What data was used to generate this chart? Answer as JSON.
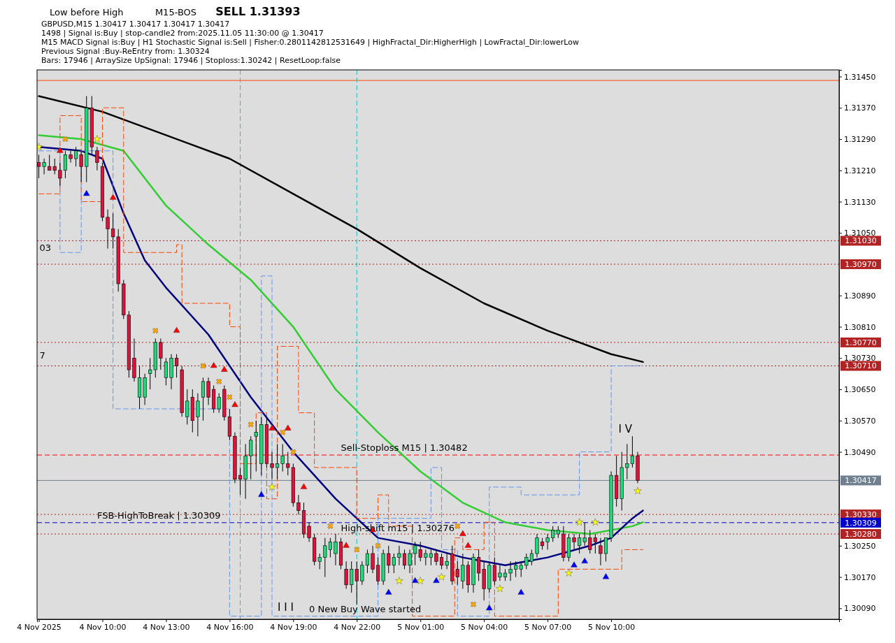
{
  "chart_data": {
    "type": "candlestick",
    "title": "GBPUSD,M15  1.30417 1.30417 1.30417 1.30417",
    "annotations": [
      "Low before High",
      "M15-BOS",
      "SELL 1.31393",
      "1498 | Signal is:Buy | stop-candle2 from:2025.11.05 11:30:00 @ 1.30417",
      "M15 MACD Signal is:Buy | H1 Stochastic Signal is:Sell | Fisher:0.2801142812531649 | HighFractal_Dir:HigherHigh | LowFractal_Dir:lowerLow",
      "Previous Signal :Buy-ReEntry from: 1.30324",
      "Bars: 17946 | ArraySize UpSignal: 17946 | Stoploss:1.30242 | ResetLoop:false",
      {
        "text": "Sell-Stoploss M15 | 1.30482",
        "x": "2025-11-04T21:15",
        "y": 1.30482
      },
      {
        "text": "FSB-HighToBreak | 1.30309",
        "x": "2025-11-04T09:45",
        "y": 1.30309
      },
      {
        "text": "High-shift m15 | 1.30276",
        "x": "2025-11-04T21:15",
        "y": 1.30276
      },
      {
        "text": "0 New Buy Wave started",
        "x": "2025-11-04T19:45",
        "y": 1.3007
      },
      "I I I",
      "I V",
      "03",
      "7"
    ],
    "x": [
      "2025-11-04T07:00",
      "2025-11-04T07:15",
      "2025-11-04T07:30",
      "2025-11-04T07:45",
      "2025-11-04T08:00",
      "2025-11-04T08:15",
      "2025-11-04T08:30",
      "2025-11-04T08:45",
      "2025-11-04T09:00",
      "2025-11-04T09:15",
      "2025-11-04T09:30",
      "2025-11-04T09:45",
      "2025-11-04T10:00",
      "2025-11-04T10:15",
      "2025-11-04T10:30",
      "2025-11-04T10:45",
      "2025-11-04T11:00",
      "2025-11-04T11:15",
      "2025-11-04T11:30",
      "2025-11-04T11:45",
      "2025-11-04T12:00",
      "2025-11-04T12:15",
      "2025-11-04T12:30",
      "2025-11-04T12:45",
      "2025-11-04T13:00",
      "2025-11-04T13:15",
      "2025-11-04T13:30",
      "2025-11-04T13:45",
      "2025-11-04T14:00",
      "2025-11-04T14:15",
      "2025-11-04T14:30",
      "2025-11-04T14:45",
      "2025-11-04T15:00",
      "2025-11-04T15:15",
      "2025-11-04T15:30",
      "2025-11-04T15:45",
      "2025-11-04T16:00",
      "2025-11-04T16:15",
      "2025-11-04T16:30",
      "2025-11-04T16:45",
      "2025-11-04T17:00",
      "2025-11-04T17:15",
      "2025-11-04T17:30",
      "2025-11-04T17:45",
      "2025-11-04T18:00",
      "2025-11-04T18:15",
      "2025-11-04T18:30",
      "2025-11-04T18:45",
      "2025-11-04T19:00",
      "2025-11-04T19:15",
      "2025-11-04T19:30",
      "2025-11-04T19:45",
      "2025-11-04T20:00",
      "2025-11-04T20:15",
      "2025-11-04T20:30",
      "2025-11-04T20:45",
      "2025-11-04T21:00",
      "2025-11-04T21:15",
      "2025-11-04T21:30",
      "2025-11-04T21:45",
      "2025-11-04T22:00",
      "2025-11-04T22:15",
      "2025-11-04T22:30",
      "2025-11-04T22:45",
      "2025-11-04T23:00",
      "2025-11-04T23:15",
      "2025-11-04T23:30",
      "2025-11-04T23:45",
      "2025-11-05T00:00",
      "2025-11-05T00:15",
      "2025-11-05T00:30",
      "2025-11-05T00:45",
      "2025-11-05T01:00",
      "2025-11-05T01:15",
      "2025-11-05T01:30",
      "2025-11-05T01:45",
      "2025-11-05T02:00",
      "2025-11-05T02:15",
      "2025-11-05T02:30",
      "2025-11-05T02:45",
      "2025-11-05T03:00",
      "2025-11-05T03:15",
      "2025-11-05T03:30",
      "2025-11-05T03:45",
      "2025-11-05T04:00",
      "2025-11-05T04:15",
      "2025-11-05T04:30",
      "2025-11-05T04:45",
      "2025-11-05T05:00",
      "2025-11-05T05:15",
      "2025-11-05T05:30",
      "2025-11-05T05:45",
      "2025-11-05T06:00",
      "2025-11-05T06:15",
      "2025-11-05T06:30",
      "2025-11-05T06:45",
      "2025-11-05T07:00",
      "2025-11-05T07:15",
      "2025-11-05T07:30",
      "2025-11-05T07:45",
      "2025-11-05T08:00",
      "2025-11-05T08:15",
      "2025-11-05T08:30",
      "2025-11-05T08:45",
      "2025-11-05T09:00",
      "2025-11-05T09:15",
      "2025-11-05T09:30",
      "2025-11-05T09:45",
      "2025-11-05T10:00",
      "2025-11-05T10:15",
      "2025-11-05T10:30",
      "2025-11-05T10:45",
      "2025-11-05T11:00",
      "2025-11-05T11:15"
    ],
    "ohlc": [
      [
        1.3123,
        1.3125,
        1.3119,
        1.3122
      ],
      [
        1.3122,
        1.3124,
        1.312,
        1.3123
      ],
      [
        1.3122,
        1.3125,
        1.3121,
        1.3121
      ],
      [
        1.3122,
        1.3124,
        1.312,
        1.3121
      ],
      [
        1.3121,
        1.3123,
        1.3117,
        1.3119
      ],
      [
        1.3121,
        1.3126,
        1.3119,
        1.3125
      ],
      [
        1.3125,
        1.3126,
        1.3123,
        1.3124
      ],
      [
        1.3124,
        1.3127,
        1.3122,
        1.3126
      ],
      [
        1.3125,
        1.3126,
        1.3118,
        1.3122
      ],
      [
        1.3122,
        1.314,
        1.3118,
        1.3137
      ],
      [
        1.3137,
        1.314,
        1.3125,
        1.3127
      ],
      [
        1.3126,
        1.3127,
        1.3121,
        1.3123
      ],
      [
        1.3122,
        1.3123,
        1.3108,
        1.3109
      ],
      [
        1.3109,
        1.3111,
        1.3101,
        1.3106
      ],
      [
        1.3106,
        1.311,
        1.3101,
        1.3104
      ],
      [
        1.3104,
        1.3106,
        1.309,
        1.3092
      ],
      [
        1.3092,
        1.3093,
        1.3083,
        1.3084
      ],
      [
        1.3084,
        1.3085,
        1.3068,
        1.307
      ],
      [
        1.3073,
        1.3078,
        1.3067,
        1.3068
      ],
      [
        1.3063,
        1.3071,
        1.306,
        1.3068
      ],
      [
        1.3063,
        1.3069,
        1.3061,
        1.3068
      ],
      [
        1.3069,
        1.3073,
        1.3065,
        1.307
      ],
      [
        1.307,
        1.3078,
        1.3068,
        1.3077
      ],
      [
        1.3077,
        1.3078,
        1.307,
        1.3073
      ],
      [
        1.3068,
        1.3073,
        1.3066,
        1.3072
      ],
      [
        1.3068,
        1.3074,
        1.3065,
        1.3073
      ],
      [
        1.3073,
        1.3074,
        1.3068,
        1.3071
      ],
      [
        1.307,
        1.3071,
        1.3058,
        1.3059
      ],
      [
        1.3058,
        1.3065,
        1.3056,
        1.3062
      ],
      [
        1.3063,
        1.3065,
        1.3054,
        1.3057
      ],
      [
        1.3058,
        1.3064,
        1.3053,
        1.3062
      ],
      [
        1.3063,
        1.3068,
        1.3057,
        1.3067
      ],
      [
        1.3067,
        1.3068,
        1.3061,
        1.3063
      ],
      [
        1.3065,
        1.3066,
        1.3059,
        1.306
      ],
      [
        1.306,
        1.3064,
        1.3059,
        1.3063
      ],
      [
        1.3065,
        1.3066,
        1.3057,
        1.3058
      ],
      [
        1.3058,
        1.306,
        1.3052,
        1.3053
      ],
      [
        1.3053,
        1.3054,
        1.3041,
        1.3042
      ],
      [
        1.3043,
        1.3045,
        1.3038,
        1.3042
      ],
      [
        1.3042,
        1.3051,
        1.3037,
        1.3048
      ],
      [
        1.3048,
        1.3053,
        1.3042,
        1.3052
      ],
      [
        1.3053,
        1.3057,
        1.3044,
        1.3054
      ],
      [
        1.3046,
        1.3058,
        1.3043,
        1.3056
      ],
      [
        1.3056,
        1.3058,
        1.3045,
        1.3046
      ],
      [
        1.3046,
        1.3049,
        1.3042,
        1.3045
      ],
      [
        1.3045,
        1.3051,
        1.3042,
        1.3046
      ],
      [
        1.3046,
        1.3051,
        1.3044,
        1.3048
      ],
      [
        1.3046,
        1.3049,
        1.3043,
        1.3045
      ],
      [
        1.3045,
        1.3046,
        1.3035,
        1.3036
      ],
      [
        1.3036,
        1.3038,
        1.3033,
        1.3034
      ],
      [
        1.3034,
        1.3036,
        1.3027,
        1.3028
      ],
      [
        1.303,
        1.3031,
        1.3026,
        1.3027
      ],
      [
        1.3027,
        1.3028,
        1.302,
        1.3021
      ],
      [
        1.3021,
        1.3023,
        1.3019,
        1.3022
      ],
      [
        1.3022,
        1.3027,
        1.3017,
        1.3025
      ],
      [
        1.3024,
        1.3027,
        1.3022,
        1.3026
      ],
      [
        1.3023,
        1.3028,
        1.302,
        1.3026
      ],
      [
        1.3026,
        1.3027,
        1.3019,
        1.302
      ],
      [
        1.3019,
        1.3021,
        1.3014,
        1.3015
      ],
      [
        1.3015,
        1.3021,
        1.3013,
        1.3019
      ],
      [
        1.3019,
        1.3021,
        1.301,
        1.3016
      ],
      [
        1.3016,
        1.3021,
        1.3015,
        1.302
      ],
      [
        1.302,
        1.3024,
        1.3018,
        1.3023
      ],
      [
        1.3023,
        1.3025,
        1.3018,
        1.3019
      ],
      [
        1.302,
        1.3022,
        1.3015,
        1.3016
      ],
      [
        1.3016,
        1.3024,
        1.3015,
        1.3023
      ],
      [
        1.3023,
        1.3025,
        1.3018,
        1.302
      ],
      [
        1.302,
        1.3023,
        1.3018,
        1.3022
      ],
      [
        1.3022,
        1.3025,
        1.302,
        1.3023
      ],
      [
        1.3023,
        1.3024,
        1.3019,
        1.302
      ],
      [
        1.302,
        1.3024,
        1.3018,
        1.3023
      ],
      [
        1.3023,
        1.3026,
        1.302,
        1.3025
      ],
      [
        1.3024,
        1.3026,
        1.3021,
        1.3022
      ],
      [
        1.3022,
        1.3024,
        1.302,
        1.3023
      ],
      [
        1.3022,
        1.3024,
        1.302,
        1.3023
      ],
      [
        1.3023,
        1.3024,
        1.302,
        1.3021
      ],
      [
        1.3022,
        1.3023,
        1.3019,
        1.302
      ],
      [
        1.302,
        1.3023,
        1.3019,
        1.3021
      ],
      [
        1.3023,
        1.3025,
        1.3015,
        1.3016
      ],
      [
        1.3019,
        1.3021,
        1.3015,
        1.3017
      ],
      [
        1.3016,
        1.3023,
        1.3014,
        1.302
      ],
      [
        1.302,
        1.3021,
        1.3013,
        1.3015
      ],
      [
        1.3015,
        1.3023,
        1.3013,
        1.3022
      ],
      [
        1.3022,
        1.3024,
        1.3016,
        1.3018
      ],
      [
        1.3019,
        1.3021,
        1.3011,
        1.3014
      ],
      [
        1.3014,
        1.3021,
        1.3013,
        1.302
      ],
      [
        1.302,
        1.3022,
        1.3015,
        1.3016
      ],
      [
        1.3017,
        1.302,
        1.3016,
        1.3018
      ],
      [
        1.3017,
        1.3019,
        1.3016,
        1.3018
      ],
      [
        1.3018,
        1.3021,
        1.3016,
        1.3019
      ],
      [
        1.3019,
        1.3021,
        1.3017,
        1.302
      ],
      [
        1.3019,
        1.3021,
        1.3017,
        1.302
      ],
      [
        1.302,
        1.3023,
        1.3019,
        1.3022
      ],
      [
        1.3021,
        1.3024,
        1.302,
        1.3023
      ],
      [
        1.3023,
        1.3028,
        1.3022,
        1.3027
      ],
      [
        1.3026,
        1.3027,
        1.3024,
        1.3025
      ],
      [
        1.3026,
        1.3028,
        1.3024,
        1.3027
      ],
      [
        1.3027,
        1.303,
        1.3026,
        1.3029
      ],
      [
        1.3028,
        1.303,
        1.3027,
        1.3029
      ],
      [
        1.3028,
        1.303,
        1.3021,
        1.3022
      ],
      [
        1.3022,
        1.3028,
        1.3021,
        1.3027
      ],
      [
        1.3027,
        1.3028,
        1.3024,
        1.3026
      ],
      [
        1.3025,
        1.3028,
        1.3023,
        1.3027
      ],
      [
        1.3026,
        1.3031,
        1.3025,
        1.3027
      ],
      [
        1.3027,
        1.3029,
        1.3023,
        1.3024
      ],
      [
        1.3027,
        1.3028,
        1.3023,
        1.3026
      ],
      [
        1.3025,
        1.3027,
        1.302,
        1.3023
      ],
      [
        1.3023,
        1.3027,
        1.3021,
        1.3027
      ],
      [
        1.3027,
        1.3044,
        1.3026,
        1.3043
      ],
      [
        1.3043,
        1.3048,
        1.3035,
        1.3037
      ],
      [
        1.3037,
        1.3049,
        1.3034,
        1.3045
      ],
      [
        1.3045,
        1.3051,
        1.3042,
        1.3046
      ],
      [
        1.3046,
        1.3053,
        1.3045,
        1.3048
      ],
      [
        1.3048,
        1.3049,
        1.3041,
        1.30417
      ]
    ],
    "series": [
      {
        "type": "line",
        "color": "#000000",
        "x": [
          "2025-11-04T07:00",
          "2025-11-04T10:00",
          "2025-11-04T13:00",
          "2025-11-04T16:00",
          "2025-11-04T19:00",
          "2025-11-04T22:00",
          "2025-11-05T01:00",
          "2025-11-05T04:00",
          "2025-11-05T07:00",
          "2025-11-05T10:00",
          "2025-11-05T11:30"
        ],
        "values": [
          1.314,
          1.3136,
          1.313,
          1.3124,
          1.3115,
          1.3106,
          1.3096,
          1.3087,
          1.308,
          1.3074,
          1.3072
        ]
      },
      {
        "type": "line",
        "color": "#32cd32",
        "x": [
          "2025-11-04T07:00",
          "2025-11-04T09:00",
          "2025-11-04T11:00",
          "2025-11-04T13:00",
          "2025-11-04T15:00",
          "2025-11-04T17:00",
          "2025-11-04T19:00",
          "2025-11-04T21:00",
          "2025-11-04T23:00",
          "2025-11-05T01:00",
          "2025-11-05T03:00",
          "2025-11-05T05:00",
          "2025-11-05T07:00",
          "2025-11-05T09:00",
          "2025-11-05T11:00",
          "2025-11-05T11:30"
        ],
        "values": [
          1.313,
          1.3129,
          1.3126,
          1.3112,
          1.3102,
          1.3093,
          1.3081,
          1.3065,
          1.3054,
          1.3044,
          1.3036,
          1.3031,
          1.3029,
          1.3028,
          1.303,
          1.3031
        ]
      },
      {
        "type": "line",
        "color": "#000080",
        "x": [
          "2025-11-04T07:00",
          "2025-11-04T09:00",
          "2025-11-04T10:00",
          "2025-11-04T11:00",
          "2025-11-04T12:00",
          "2025-11-04T13:00",
          "2025-11-04T15:00",
          "2025-11-04T17:00",
          "2025-11-04T19:00",
          "2025-11-04T21:00",
          "2025-11-04T23:00",
          "2025-11-05T01:00",
          "2025-11-05T03:00",
          "2025-11-05T05:00",
          "2025-11-05T07:00",
          "2025-11-05T09:00",
          "2025-11-05T10:00",
          "2025-11-05T11:00",
          "2025-11-05T11:30"
        ],
        "values": [
          1.3127,
          1.3126,
          1.3124,
          1.311,
          1.3098,
          1.3091,
          1.3079,
          1.3063,
          1.3049,
          1.3037,
          1.3027,
          1.3025,
          1.3022,
          1.302,
          1.3022,
          1.3025,
          1.3027,
          1.3032,
          1.3034
        ]
      },
      {
        "type": "step",
        "color": "#ff4500",
        "line_style": "dashed",
        "x": [
          "2025-11-04T07:00",
          "2025-11-04T08:00",
          "2025-11-04T09:00",
          "2025-11-04T10:00",
          "2025-11-04T11:00",
          "2025-11-04T13:30",
          "2025-11-04T13:45",
          "2025-11-04T16:00",
          "2025-11-04T16:30",
          "2025-11-04T17:15",
          "2025-11-04T17:45",
          "2025-11-04T18:15",
          "2025-11-04T19:15",
          "2025-11-04T20:00",
          "2025-11-04T22:00",
          "2025-11-04T23:00",
          "2025-11-04T23:30",
          "2025-11-05T00:37",
          "2025-11-05T02:37",
          "2025-11-05T03:00",
          "2025-11-05T04:00",
          "2025-11-05T04:30",
          "2025-11-05T06:30",
          "2025-11-05T07:30",
          "2025-11-05T10:00",
          "2025-11-05T10:30",
          "2025-11-05T11:30"
        ],
        "values": [
          1.3115,
          1.3135,
          1.3113,
          1.3137,
          1.31,
          1.3102,
          1.3087,
          1.3081,
          1.3046,
          1.3059,
          1.3037,
          1.3076,
          1.3059,
          1.3045,
          1.3032,
          1.3038,
          1.303,
          1.3007,
          1.3027,
          1.3024,
          1.3031,
          1.3007,
          1.3007,
          1.3019,
          1.3019,
          1.3024,
          1.3024
        ]
      },
      {
        "type": "step",
        "color": "#6495ed",
        "line_style": "dashed",
        "x": [
          "2025-11-04T07:00",
          "2025-11-04T08:00",
          "2025-11-04T09:00",
          "2025-11-04T10:30",
          "2025-11-04T16:00",
          "2025-11-04T17:30",
          "2025-11-04T18:00",
          "2025-11-04T21:30",
          "2025-11-04T23:00",
          "2025-11-05T01:30",
          "2025-11-05T02:00",
          "2025-11-05T02:45",
          "2025-11-05T04:15",
          "2025-11-05T05:45",
          "2025-11-05T08:30",
          "2025-11-05T10:00",
          "2025-11-05T11:30"
        ],
        "values": [
          1.3126,
          1.31,
          1.3126,
          1.306,
          1.3007,
          1.3094,
          1.3007,
          1.3007,
          1.3032,
          1.3045,
          1.3024,
          1.3007,
          1.304,
          1.3038,
          1.3049,
          1.3071,
          1.3071
        ]
      },
      {
        "type": "scatter",
        "marker": "triangle",
        "color": "#ff0000",
        "x": [
          "2025-11-04T08:00",
          "2025-11-04T10:30",
          "2025-11-04T13:30",
          "2025-11-04T15:15",
          "2025-11-04T15:45",
          "2025-11-04T16:15",
          "2025-11-04T18:00",
          "2025-11-04T18:45",
          "2025-11-04T19:30",
          "2025-11-04T21:30",
          "2025-11-04T22:45",
          "2025-11-05T03:00",
          "2025-11-05T03:15"
        ],
        "values": [
          1.3126,
          1.3114,
          1.308,
          1.3071,
          1.307,
          1.3061,
          1.3055,
          1.3055,
          1.304,
          1.3025,
          1.3029,
          1.3028,
          1.3025
        ]
      },
      {
        "type": "scatter",
        "marker": "triangle",
        "color": "#0000ff",
        "x": [
          "2025-11-04T09:15",
          "2025-11-04T17:30",
          "2025-11-04T23:30",
          "2025-11-05T00:45",
          "2025-11-05T01:45",
          "2025-11-05T04:15",
          "2025-11-05T05:45",
          "2025-11-05T08:15",
          "2025-11-05T08:45",
          "2025-11-05T09:45"
        ],
        "values": [
          1.3115,
          1.3038,
          1.3013,
          1.3016,
          1.3016,
          1.3009,
          1.3013,
          1.302,
          1.3021,
          1.3017
        ]
      },
      {
        "type": "scatter",
        "marker": "star",
        "color": "#ffff00",
        "x": [
          "2025-11-04T07:00",
          "2025-11-04T09:45",
          "2025-11-04T18:00",
          "2025-11-05T00:00",
          "2025-11-05T01:00",
          "2025-11-05T02:00",
          "2025-11-05T04:45",
          "2025-11-05T08:00",
          "2025-11-05T08:30",
          "2025-11-05T09:15",
          "2025-11-05T11:15"
        ],
        "values": [
          1.3127,
          1.3129,
          1.304,
          1.3016,
          1.3016,
          1.3017,
          1.3014,
          1.3018,
          1.3031,
          1.3031,
          1.3039
        ]
      },
      {
        "type": "scatter",
        "marker": "cross",
        "color": "#ffa500",
        "x": [
          "2025-11-04T08:15",
          "2025-11-04T12:30",
          "2025-11-04T14:45",
          "2025-11-04T15:30",
          "2025-11-04T16:00",
          "2025-11-04T17:00",
          "2025-11-04T18:30",
          "2025-11-04T19:00",
          "2025-11-04T20:45",
          "2025-11-04T22:00",
          "2025-11-04T23:00",
          "2025-11-05T02:45",
          "2025-11-05T03:30"
        ],
        "values": [
          1.3129,
          1.308,
          1.3071,
          1.3067,
          1.3063,
          1.3056,
          1.3054,
          1.3049,
          1.303,
          1.3024,
          1.3025,
          1.303,
          1.301
        ]
      }
    ],
    "ref_lines": [
      {
        "axis": "y",
        "value": 1.3144,
        "color": "#ff4500",
        "line_style": "solid"
      },
      {
        "axis": "y",
        "value": 1.3103,
        "label": "1.31030",
        "color": "#b22222",
        "line_style": "dotted"
      },
      {
        "axis": "y",
        "value": 1.3097,
        "label": "1.30970",
        "color": "#b22222",
        "line_style": "dotted"
      },
      {
        "axis": "y",
        "value": 1.3077,
        "label": "1.30770",
        "color": "#b22222",
        "line_style": "dotted"
      },
      {
        "axis": "y",
        "value": 1.3071,
        "label": "1.30710",
        "color": "#b22222",
        "line_style": "dotted"
      },
      {
        "axis": "y",
        "value": 1.30482,
        "color": "#ff0000",
        "line_style": "dashed"
      },
      {
        "axis": "y",
        "value": 1.30417,
        "label": "1.30417",
        "color": "#708090",
        "line_style": "solid"
      },
      {
        "axis": "y",
        "value": 1.3033,
        "label": "1.30330",
        "color": "#b22222",
        "line_style": "dotted"
      },
      {
        "axis": "y",
        "value": 1.30309,
        "label": "1.30309",
        "color": "#0000cd",
        "line_style": "dashed"
      },
      {
        "axis": "y",
        "value": 1.3028,
        "label": "1.30280",
        "color": "#b22222",
        "line_style": "dotted"
      },
      {
        "axis": "x",
        "value": "2025-11-04T16:30",
        "color": "#00ced1",
        "line_style": "dashed"
      },
      {
        "axis": "x",
        "value": "2025-11-04T22:00",
        "color": "#00ced1",
        "line_style": "dashed"
      }
    ],
    "xlim": [
      "2025-11-04T06:55",
      "2025-11-05T20:45"
    ],
    "xticks": [
      {
        "value": "2025-11-04T07:00",
        "label": "4 Nov 2025"
      },
      {
        "value": "2025-11-04T10:00",
        "label": "4 Nov 10:00"
      },
      {
        "value": "2025-11-04T13:00",
        "label": "4 Nov 13:00"
      },
      {
        "value": "2025-11-04T16:00",
        "label": "4 Nov 16:00"
      },
      {
        "value": "2025-11-04T19:00",
        "label": "4 Nov 19:00"
      },
      {
        "value": "2025-11-04T22:00",
        "label": "4 Nov 22:00"
      },
      {
        "value": "2025-11-05T01:00",
        "label": "5 Nov 01:00"
      },
      {
        "value": "2025-11-05T04:00",
        "label": "5 Nov 04:00"
      },
      {
        "value": "2025-11-05T07:00",
        "label": "5 Nov 07:00"
      },
      {
        "value": "2025-11-05T10:00",
        "label": "5 Nov 10:00"
      }
    ],
    "ylim": [
      1.30062,
      1.31467
    ],
    "yticks": [
      {
        "value": 1.3145,
        "label": "1.31450"
      },
      {
        "value": 1.3137,
        "label": "1.31370"
      },
      {
        "value": 1.3129,
        "label": "1.31290"
      },
      {
        "value": 1.3121,
        "label": "1.31210"
      },
      {
        "value": 1.3113,
        "label": "1.31130"
      },
      {
        "value": 1.3105,
        "label": "1.31050"
      },
      {
        "value": 1.3089,
        "label": "1.30890"
      },
      {
        "value": 1.3081,
        "label": "1.30810"
      },
      {
        "value": 1.3073,
        "label": "1.30730"
      },
      {
        "value": 1.3065,
        "label": "1.30650"
      },
      {
        "value": 1.3057,
        "label": "1.30570"
      },
      {
        "value": 1.3049,
        "label": "1.30490"
      },
      {
        "value": 1.3025,
        "label": "1.30250"
      },
      {
        "value": 1.3017,
        "label": "1.30170"
      },
      {
        "value": 1.3009,
        "label": "1.30090"
      }
    ]
  }
}
